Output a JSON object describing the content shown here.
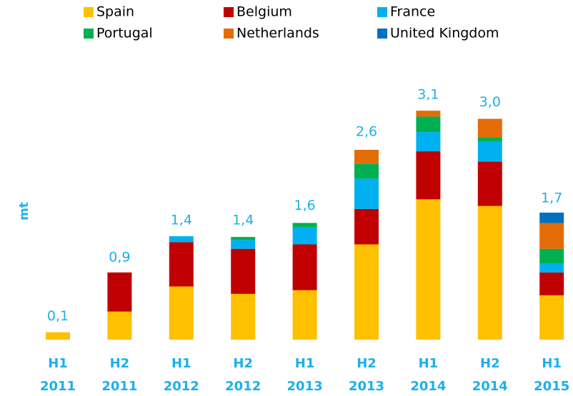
{
  "chart_data": {
    "type": "stacked_bar",
    "y_label": "mt",
    "categories": [
      "H1 2011",
      "H2 2011",
      "H1 2012",
      "H2 2012",
      "H1 2013",
      "H2 2013",
      "H1 2014",
      "H2 2014",
      "H1 2015"
    ],
    "series": [
      {
        "name": "Spain",
        "color": "#ffc000",
        "values": [
          0.1,
          0.38,
          0.72,
          0.62,
          0.67,
          1.29,
          1.9,
          1.81,
          0.6
        ]
      },
      {
        "name": "Belgium",
        "color": "#c00000",
        "values": [
          0,
          0.53,
          0.6,
          0.61,
          0.62,
          0.48,
          0.65,
          0.6,
          0.31
        ]
      },
      {
        "name": "France",
        "color": "#00b0f0",
        "values": [
          0,
          0,
          0.08,
          0.12,
          0.23,
          0.41,
          0.26,
          0.27,
          0.12
        ]
      },
      {
        "name": "Portugal",
        "color": "#00b050",
        "values": [
          0,
          0,
          0,
          0.04,
          0.06,
          0.2,
          0.21,
          0.06,
          0.2
        ]
      },
      {
        "name": "Netherlands",
        "color": "#e36c09",
        "values": [
          0,
          0,
          0,
          0,
          0,
          0.19,
          0.08,
          0.25,
          0.35
        ]
      },
      {
        "name": "United Kingdom",
        "color": "#0070c0",
        "values": [
          0,
          0,
          0,
          0,
          0,
          0,
          0,
          0,
          0.14
        ]
      }
    ],
    "totals": [
      0.1,
      0.9,
      1.4,
      1.4,
      1.6,
      2.6,
      3.1,
      3.0,
      1.7
    ],
    "value_labels": [
      "0,1",
      "0,9",
      "1,4",
      "1,4",
      "1,6",
      "2,6",
      "3,1",
      "3,0",
      "1,7"
    ]
  }
}
